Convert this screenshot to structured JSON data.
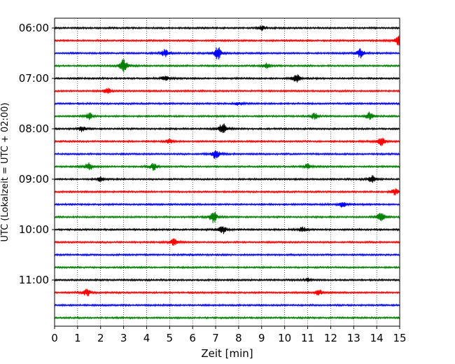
{
  "chart_data": {
    "type": "line",
    "title": "",
    "xlabel": "Zeit  [min]",
    "ylabel": "UTC (Lokalzeit = UTC + 02:00)",
    "xlim": [
      0,
      15
    ],
    "x_ticks": [
      "0",
      "1",
      "2",
      "3",
      "4",
      "5",
      "6",
      "7",
      "8",
      "9",
      "10",
      "11",
      "12",
      "13",
      "14",
      "15"
    ],
    "y_ticks": [
      "06:00",
      "07:00",
      "08:00",
      "09:00",
      "10:00",
      "11:00"
    ],
    "grid": "vertical dotted",
    "trace_start_times": [
      "06:00",
      "06:15",
      "06:30",
      "06:45",
      "07:00",
      "07:15",
      "07:30",
      "07:45",
      "08:00",
      "08:15",
      "08:30",
      "08:45",
      "09:00",
      "09:15",
      "09:30",
      "09:45",
      "10:00",
      "10:15",
      "10:30",
      "10:45",
      "11:00",
      "11:15",
      "11:30",
      "11:45"
    ],
    "trace_colors": [
      "#000000",
      "#ff0000",
      "#0000ff",
      "#008000"
    ],
    "events": [
      {
        "trace": 0,
        "minute": 9.0,
        "amp": 0.8
      },
      {
        "trace": 1,
        "minute": 15.0,
        "amp": 2.2
      },
      {
        "trace": 2,
        "minute": 4.8,
        "amp": 1.2
      },
      {
        "trace": 2,
        "minute": 7.1,
        "amp": 2.0
      },
      {
        "trace": 2,
        "minute": 13.3,
        "amp": 1.5
      },
      {
        "trace": 3,
        "minute": 3.0,
        "amp": 2.2
      },
      {
        "trace": 3,
        "minute": 9.2,
        "amp": 0.9
      },
      {
        "trace": 4,
        "minute": 4.8,
        "amp": 0.9
      },
      {
        "trace": 4,
        "minute": 10.5,
        "amp": 1.6
      },
      {
        "trace": 5,
        "minute": 2.3,
        "amp": 0.9
      },
      {
        "trace": 6,
        "minute": 8.0,
        "amp": 0.6
      },
      {
        "trace": 7,
        "minute": 1.5,
        "amp": 1.2
      },
      {
        "trace": 7,
        "minute": 11.3,
        "amp": 1.0
      },
      {
        "trace": 7,
        "minute": 13.7,
        "amp": 1.3
      },
      {
        "trace": 8,
        "minute": 1.2,
        "amp": 0.9
      },
      {
        "trace": 8,
        "minute": 7.3,
        "amp": 2.0
      },
      {
        "trace": 9,
        "minute": 5.0,
        "amp": 0.8
      },
      {
        "trace": 9,
        "minute": 14.2,
        "amp": 1.3
      },
      {
        "trace": 10,
        "minute": 7.0,
        "amp": 1.6
      },
      {
        "trace": 11,
        "minute": 1.5,
        "amp": 1.5
      },
      {
        "trace": 11,
        "minute": 4.3,
        "amp": 1.1
      },
      {
        "trace": 11,
        "minute": 11.0,
        "amp": 0.9
      },
      {
        "trace": 12,
        "minute": 2.0,
        "amp": 0.8
      },
      {
        "trace": 12,
        "minute": 13.8,
        "amp": 1.2
      },
      {
        "trace": 13,
        "minute": 14.8,
        "amp": 1.0
      },
      {
        "trace": 14,
        "minute": 12.5,
        "amp": 1.0
      },
      {
        "trace": 15,
        "minute": 6.9,
        "amp": 2.0
      },
      {
        "trace": 15,
        "minute": 14.2,
        "amp": 1.6
      },
      {
        "trace": 16,
        "minute": 7.3,
        "amp": 1.4
      },
      {
        "trace": 16,
        "minute": 10.8,
        "amp": 0.9
      },
      {
        "trace": 17,
        "minute": 5.2,
        "amp": 1.1
      },
      {
        "trace": 20,
        "minute": 11.0,
        "amp": 0.6
      },
      {
        "trace": 21,
        "minute": 1.4,
        "amp": 1.2
      },
      {
        "trace": 21,
        "minute": 11.5,
        "amp": 0.9
      }
    ]
  }
}
